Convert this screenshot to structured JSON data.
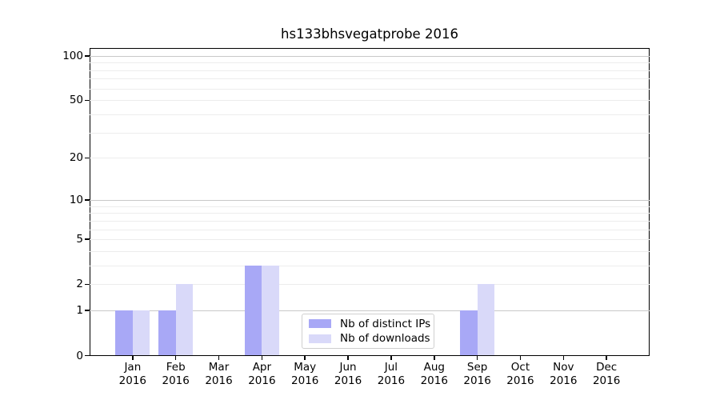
{
  "title": "hs133bhsvegatprobe 2016",
  "chart_data": {
    "type": "bar",
    "title": "hs133bhsvegatprobe 2016",
    "categories": [
      "Jan",
      "Feb",
      "Mar",
      "Apr",
      "May",
      "Jun",
      "Jul",
      "Aug",
      "Sep",
      "Oct",
      "Nov",
      "Dec"
    ],
    "x_year_label": "2016",
    "series": [
      {
        "name": "Nb of distinct IPs",
        "color": "#a8a8f6",
        "values": [
          1,
          1,
          0,
          3,
          0,
          0,
          0,
          0,
          1,
          0,
          0,
          0
        ]
      },
      {
        "name": "Nb of downloads",
        "color": "#d9d9f9",
        "values": [
          1,
          2,
          0,
          3,
          0,
          0,
          0,
          0,
          2,
          0,
          0,
          0
        ]
      }
    ],
    "yscale": "log1p",
    "ylim": [
      0,
      113
    ],
    "yticks": [
      0,
      1,
      2,
      5,
      10,
      20,
      50,
      100
    ],
    "strong_gridlines": [
      1,
      10,
      100
    ],
    "minor_gridlines": [
      3,
      4,
      6,
      7,
      8,
      9,
      30,
      40,
      60,
      70,
      80,
      90
    ],
    "grid": true,
    "legend_position": "lower center",
    "colors": {
      "spine": "#000000",
      "grid_major": "#c9c9c9",
      "grid_minor": "#ececec",
      "background": "#ffffff"
    }
  }
}
